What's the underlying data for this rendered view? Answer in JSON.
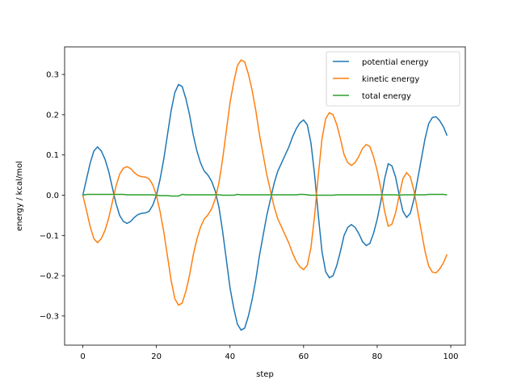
{
  "chart_data": {
    "type": "line",
    "xlabel": "step",
    "ylabel": "energy / kcal/mol",
    "x": [
      0,
      1,
      2,
      3,
      4,
      5,
      6,
      7,
      8,
      9,
      10,
      11,
      12,
      13,
      14,
      15,
      16,
      17,
      18,
      19,
      20,
      21,
      22,
      23,
      24,
      25,
      26,
      27,
      28,
      29,
      30,
      31,
      32,
      33,
      34,
      35,
      36,
      37,
      38,
      39,
      40,
      41,
      42,
      43,
      44,
      45,
      46,
      47,
      48,
      49,
      50,
      51,
      52,
      53,
      54,
      55,
      56,
      57,
      58,
      59,
      60,
      61,
      62,
      63,
      64,
      65,
      66,
      67,
      68,
      69,
      70,
      71,
      72,
      73,
      74,
      75,
      76,
      77,
      78,
      79,
      80,
      81,
      82,
      83,
      84,
      85,
      86,
      87,
      88,
      89,
      90,
      91,
      92,
      93,
      94,
      95,
      96,
      97,
      98,
      99
    ],
    "series": [
      {
        "name": "potential energy",
        "color": "#1f77b4",
        "values": [
          0,
          0.04,
          0.08,
          0.11,
          0.12,
          0.11,
          0.09,
          0.06,
          0.02,
          -0.02,
          -0.05,
          -0.065,
          -0.07,
          -0.065,
          -0.055,
          -0.048,
          -0.045,
          -0.044,
          -0.04,
          -0.025,
          0,
          0.04,
          0.09,
          0.15,
          0.21,
          0.255,
          0.275,
          0.27,
          0.24,
          0.2,
          0.15,
          0.11,
          0.08,
          0.06,
          0.05,
          0.035,
          0.01,
          -0.03,
          -0.09,
          -0.16,
          -0.23,
          -0.28,
          -0.32,
          -0.335,
          -0.33,
          -0.3,
          -0.26,
          -0.21,
          -0.15,
          -0.1,
          -0.05,
          -0.01,
          0.03,
          0.06,
          0.08,
          0.1,
          0.12,
          0.145,
          0.165,
          0.18,
          0.187,
          0.175,
          0.13,
          0.05,
          -0.05,
          -0.14,
          -0.19,
          -0.205,
          -0.2,
          -0.175,
          -0.14,
          -0.1,
          -0.08,
          -0.073,
          -0.08,
          -0.095,
          -0.115,
          -0.125,
          -0.12,
          -0.095,
          -0.06,
          -0.015,
          0.04,
          0.078,
          0.073,
          0.045,
          0,
          -0.04,
          -0.055,
          -0.045,
          -0.01,
          0.04,
          0.09,
          0.14,
          0.178,
          0.193,
          0.195,
          0.185,
          0.17,
          0.148
        ]
      },
      {
        "name": "kinetic energy",
        "color": "#ff7f0e",
        "values": [
          0,
          -0.038,
          -0.078,
          -0.108,
          -0.118,
          -0.108,
          -0.088,
          -0.058,
          -0.018,
          0.022,
          0.052,
          0.067,
          0.071,
          0.066,
          0.056,
          0.049,
          0.046,
          0.045,
          0.041,
          0.026,
          0,
          -0.041,
          -0.091,
          -0.151,
          -0.212,
          -0.257,
          -0.273,
          -0.268,
          -0.239,
          -0.199,
          -0.149,
          -0.109,
          -0.079,
          -0.059,
          -0.049,
          -0.034,
          -0.009,
          0.031,
          0.09,
          0.16,
          0.23,
          0.28,
          0.322,
          0.336,
          0.331,
          0.301,
          0.261,
          0.211,
          0.151,
          0.101,
          0.051,
          0.011,
          -0.029,
          -0.059,
          -0.079,
          -0.099,
          -0.119,
          -0.144,
          -0.164,
          -0.178,
          -0.185,
          -0.174,
          -0.13,
          -0.05,
          0.05,
          0.14,
          0.19,
          0.205,
          0.2,
          0.176,
          0.141,
          0.101,
          0.081,
          0.074,
          0.081,
          0.096,
          0.116,
          0.126,
          0.121,
          0.096,
          0.061,
          0.016,
          -0.039,
          -0.077,
          -0.072,
          -0.044,
          0,
          0.041,
          0.056,
          0.046,
          0.011,
          -0.039,
          -0.089,
          -0.139,
          -0.176,
          -0.191,
          -0.193,
          -0.183,
          -0.168,
          -0.147
        ]
      },
      {
        "name": "total energy",
        "color": "#2ca02c",
        "values": [
          0,
          0.002,
          0.002,
          0.002,
          0.002,
          0.002,
          0.002,
          0.002,
          0.002,
          0.002,
          0.002,
          0.002,
          0.001,
          0.001,
          0.001,
          0.001,
          0.001,
          0.001,
          0.001,
          0.001,
          0,
          -0.001,
          -0.001,
          -0.001,
          -0.002,
          -0.002,
          -0.002,
          0.002,
          0.001,
          0.001,
          0.001,
          0.001,
          0.001,
          0.001,
          0.001,
          0.001,
          0.001,
          0.001,
          0,
          0,
          0,
          0,
          0.002,
          0.001,
          0.001,
          0.001,
          0.001,
          0.001,
          0.001,
          0.001,
          0.001,
          0.001,
          0.001,
          0.001,
          0.001,
          0.001,
          0.001,
          0.001,
          0.001,
          0.002,
          0.002,
          0.001,
          0,
          0,
          0,
          0,
          0,
          0,
          0,
          0.001,
          0.001,
          0.001,
          0.001,
          0.001,
          0.001,
          0.001,
          0.001,
          0.001,
          0.001,
          0.001,
          0.001,
          0.001,
          0.001,
          0.001,
          0.001,
          0.001,
          0,
          0.001,
          0.001,
          0.001,
          0.001,
          0.001,
          0.001,
          0.001,
          0.002,
          0.002,
          0.002,
          0.002,
          0.002,
          0.001
        ]
      }
    ],
    "xlim": [
      -4.95,
      103.95
    ],
    "xticks": [
      0,
      20,
      40,
      60,
      80,
      100
    ],
    "ylim": [
      -0.3725,
      0.3685
    ],
    "yticks": [
      {
        "value": -0.3,
        "label": "−0.3"
      },
      {
        "value": -0.2,
        "label": "−0.2"
      },
      {
        "value": -0.1,
        "label": "−0.1"
      },
      {
        "value": 0,
        "label": "0.0"
      },
      0.1,
      0.2,
      0.3
    ],
    "legend": "upper right"
  }
}
